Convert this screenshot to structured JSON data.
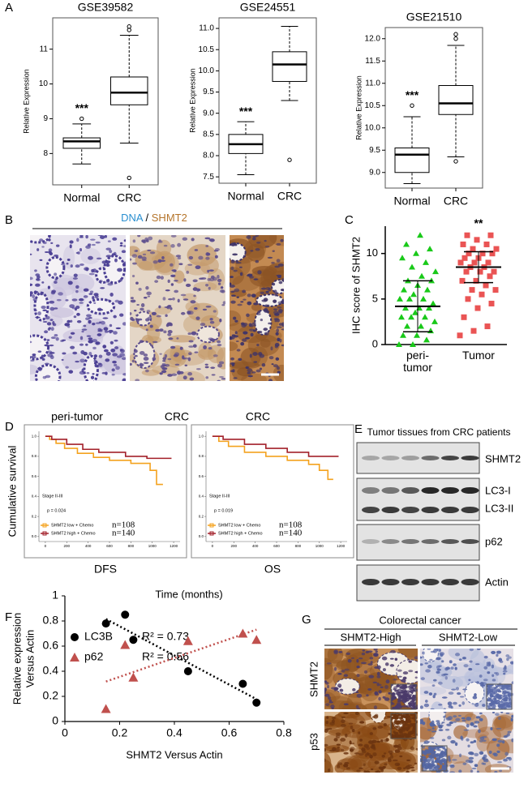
{
  "panel_labels": [
    "A",
    "B",
    "C",
    "D",
    "E",
    "F",
    "G"
  ],
  "chart_data": [
    {
      "type": "box",
      "title": "GSE39582",
      "y_label": "Relative Expression",
      "categories": [
        "Normal",
        "CRC"
      ],
      "annotation": "***",
      "ylim": [
        7.1,
        11.9
      ],
      "yticks": [
        8,
        9,
        10,
        11
      ],
      "boxes": [
        {
          "whislo": 7.7,
          "q1": 8.15,
          "med": 8.35,
          "q3": 8.45,
          "whishi": 8.85,
          "fliers": [
            9.0
          ]
        },
        {
          "whislo": 8.3,
          "q1": 9.4,
          "med": 9.75,
          "q3": 10.2,
          "whishi": 11.4,
          "fliers": [
            11.55,
            11.65,
            7.3
          ]
        }
      ]
    },
    {
      "type": "box",
      "title": "GSE24551",
      "y_label": "Relative Expression",
      "categories": [
        "Normal",
        "CRC"
      ],
      "annotation": "***",
      "ylim": [
        7.35,
        11.25
      ],
      "yticks": [
        7.5,
        {
          "value": 8,
          "label": "8.0"
        },
        8.5,
        {
          "value": 9,
          "label": "9.0"
        },
        9.5,
        {
          "value": 10,
          "label": "10.0"
        },
        10.5,
        {
          "value": 11,
          "label": "11.0"
        }
      ],
      "boxes": [
        {
          "whislo": 7.55,
          "q1": 8.05,
          "med": 8.27,
          "q3": 8.5,
          "whishi": 8.8,
          "fliers": []
        },
        {
          "whislo": 9.3,
          "q1": 9.75,
          "med": 10.15,
          "q3": 10.45,
          "whishi": 11.05,
          "fliers": [
            7.9
          ]
        }
      ]
    },
    {
      "type": "box",
      "title": "GSE21510",
      "y_label": "Relative Expression",
      "categories": [
        "Normal",
        "CRC"
      ],
      "annotation": "***",
      "ylim": [
        8.65,
        12.25
      ],
      "yticks": [
        {
          "value": 9,
          "label": "9.0"
        },
        9.5,
        {
          "value": 10,
          "label": "10.0"
        },
        10.5,
        {
          "value": 11,
          "label": "11.0"
        },
        11.5,
        {
          "value": 12,
          "label": "12.0"
        }
      ],
      "boxes": [
        {
          "whislo": 8.75,
          "q1": 9.0,
          "med": 9.4,
          "q3": 9.55,
          "whishi": 10.25,
          "fliers": [
            10.5
          ]
        },
        {
          "whislo": 9.35,
          "q1": 10.3,
          "med": 10.55,
          "q3": 10.95,
          "whishi": 11.85,
          "fliers": [
            12.1,
            12.0,
            9.25
          ]
        }
      ]
    },
    {
      "type": "dot",
      "y_label": "IHC score of SHMT2",
      "categories": [
        "peri-tumor",
        "Tumor"
      ],
      "annotation": "**",
      "ylim": [
        0,
        13
      ],
      "yticks": [
        0,
        5,
        10
      ],
      "groups": [
        {
          "color": "#19c919",
          "marker": "triangle",
          "mean": 4.2,
          "sd": 2.8,
          "values": [
            0,
            0,
            0.5,
            1,
            1,
            1.5,
            2,
            2,
            2.5,
            3,
            3,
            3,
            3.5,
            4,
            4,
            4,
            4.5,
            5,
            5,
            5,
            5.5,
            6,
            6,
            6.5,
            7,
            7,
            7.5,
            8,
            8.5,
            9,
            9.5,
            10,
            10.5,
            11,
            12
          ]
        },
        {
          "color": "#ea5454",
          "marker": "square",
          "mean": 8.5,
          "sd": 1.7,
          "values": [
            1,
            1.5,
            2,
            3,
            4,
            4.5,
            5,
            5.5,
            6,
            6,
            6.5,
            7,
            7,
            7.5,
            8,
            8,
            8,
            8.5,
            8.5,
            9,
            9,
            9,
            9.5,
            9.5,
            10,
            10,
            10,
            10.5,
            10.5,
            11,
            11,
            11.5,
            12,
            12
          ]
        }
      ]
    },
    {
      "type": "line",
      "title": "DFS",
      "y_label": "Cumulative survival",
      "x_label": "Time (months)",
      "stage_label": "Stage II-III",
      "p_label": "p = 0.024",
      "xlim": [
        -60,
        1260
      ],
      "ylim": [
        -0.05,
        1.05
      ],
      "xticks": [
        0,
        200,
        400,
        600,
        800,
        1000,
        1200
      ],
      "yticks": [
        {
          "value": 0,
          "label": "0.0"
        },
        0.2,
        0.4,
        0.6,
        0.8,
        {
          "value": 1,
          "label": "1.0"
        }
      ],
      "series": [
        {
          "name": "SHMT2 low + Chemo",
          "n_label": "n=108",
          "color": "#f4a21e",
          "x": [
            0,
            40,
            40,
            100,
            100,
            180,
            180,
            300,
            300,
            450,
            450,
            600,
            600,
            800,
            800,
            980,
            980,
            1040,
            1040,
            1100
          ],
          "values": [
            1,
            1,
            0.97,
            0.97,
            0.93,
            0.93,
            0.88,
            0.88,
            0.83,
            0.83,
            0.79,
            0.79,
            0.76,
            0.76,
            0.73,
            0.73,
            0.66,
            0.66,
            0.52,
            0.52
          ]
        },
        {
          "name": "SHMT2 high + Chemo",
          "n_label": "n=140",
          "color": "#a3202a",
          "x": [
            0,
            60,
            60,
            200,
            200,
            350,
            350,
            500,
            500,
            750,
            750,
            950,
            950,
            1180
          ],
          "values": [
            1,
            1,
            0.97,
            0.97,
            0.92,
            0.92,
            0.87,
            0.87,
            0.84,
            0.84,
            0.8,
            0.8,
            0.78,
            0.78
          ]
        }
      ]
    },
    {
      "type": "line",
      "title": "OS",
      "stage_label": "Stage II-III",
      "p_label": "p = 0.019",
      "xlim": [
        -60,
        1260
      ],
      "ylim": [
        -0.05,
        1.05
      ],
      "xticks": [
        0,
        200,
        400,
        600,
        800,
        1000,
        1200
      ],
      "yticks": [
        {
          "value": 0,
          "label": "0.0"
        },
        0.2,
        0.4,
        0.6,
        0.8,
        {
          "value": 1,
          "label": "1.0"
        }
      ],
      "series": [
        {
          "name": "SHMT2 low + Chemo",
          "n_label": "n=108",
          "color": "#f4a21e",
          "x": [
            0,
            60,
            60,
            150,
            150,
            300,
            300,
            500,
            500,
            700,
            700,
            900,
            900,
            1000,
            1000,
            1080,
            1080,
            1130
          ],
          "values": [
            1,
            1,
            0.95,
            0.95,
            0.9,
            0.9,
            0.84,
            0.84,
            0.8,
            0.8,
            0.76,
            0.76,
            0.72,
            0.72,
            0.66,
            0.66,
            0.57,
            0.57
          ]
        },
        {
          "name": "SHMT2 high + Chemo",
          "n_label": "n=140",
          "color": "#a3202a",
          "x": [
            0,
            100,
            100,
            300,
            300,
            500,
            500,
            700,
            700,
            900,
            900,
            1180
          ],
          "values": [
            1,
            1,
            0.97,
            0.97,
            0.92,
            0.92,
            0.88,
            0.88,
            0.84,
            0.84,
            0.8,
            0.8
          ]
        }
      ]
    },
    {
      "type": "scatter",
      "x_label": "SHMT2 Versus Actin",
      "y_label": [
        "Relative expression",
        "Versus Actin"
      ],
      "xlim": [
        0,
        0.8
      ],
      "ylim": [
        0,
        1
      ],
      "xticks": [
        0,
        0.2,
        0.4,
        0.6,
        0.8
      ],
      "yticks": [
        0,
        0.2,
        0.4,
        0.6,
        0.8,
        1
      ],
      "trendline": true,
      "series": [
        {
          "name": "LC3B",
          "r2_label": "R² = 0.73",
          "color": "#000000",
          "marker": "circle",
          "x": [
            0.15,
            0.22,
            0.25,
            0.45,
            0.65,
            0.7
          ],
          "values": [
            0.78,
            0.85,
            0.65,
            0.4,
            0.3,
            0.15
          ]
        },
        {
          "name": "p62",
          "r2_label": "R² = 0.56",
          "color": "#c0504d",
          "marker": "triangle",
          "x": [
            0.15,
            0.22,
            0.25,
            0.45,
            0.65,
            0.7
          ],
          "values": [
            0.1,
            0.61,
            0.35,
            0.64,
            0.7,
            0.65
          ]
        }
      ]
    }
  ],
  "ihc_panel": {
    "stain_labels": [
      "DNA",
      "/",
      "SHMT2"
    ],
    "captions": [
      "peri-tumor",
      "CRC",
      "CRC"
    ]
  },
  "western_blot": {
    "title": "Tumor tissues from CRC patients",
    "bands": [
      "SHMT2",
      "LC3-I",
      "LC3-II",
      "p62",
      "Actin"
    ]
  },
  "ihc_grid": {
    "title": "Colorectal cancer",
    "columns": [
      "SHMT2-High",
      "SHMT2-Low"
    ],
    "rows": [
      "SHMT2",
      "p53"
    ]
  }
}
